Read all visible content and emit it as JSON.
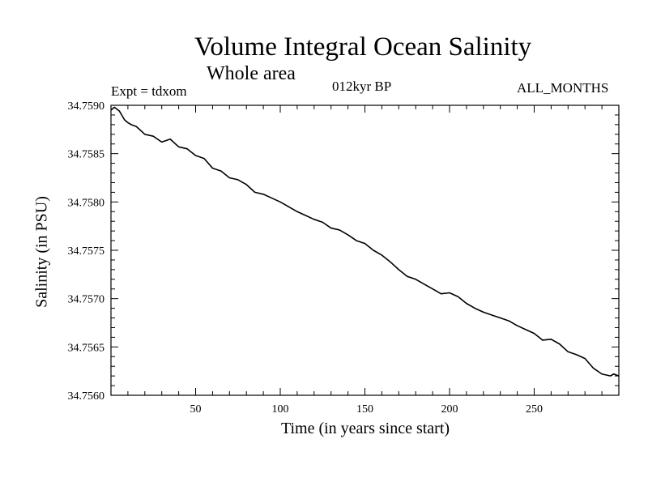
{
  "chart_data": {
    "type": "line",
    "title": "Volume Integral Ocean Salinity",
    "subtitle": "Whole area",
    "annotations": {
      "experiment": "Expt = tdxom",
      "period": "012kyr BP",
      "months": "ALL_MONTHS"
    },
    "xlabel": "Time (in years since start)",
    "ylabel": "Salinity (in PSU)",
    "xlim": [
      0,
      300
    ],
    "ylim": [
      34.756,
      34.759
    ],
    "xticks": [
      50,
      100,
      150,
      200,
      250
    ],
    "xtick_labels": [
      "50",
      "100",
      "150",
      "200",
      "250"
    ],
    "yticks": [
      34.756,
      34.7565,
      34.757,
      34.7575,
      34.758,
      34.7585,
      34.759
    ],
    "ytick_labels": [
      "34.7560",
      "34.7565",
      "34.7570",
      "34.7575",
      "34.7580",
      "34.7585",
      "34.7590"
    ],
    "grid": false,
    "series": [
      {
        "x": [
          0,
          2,
          5,
          8,
          10,
          12,
          15,
          20,
          25,
          30,
          35,
          40,
          45,
          50,
          55,
          60,
          65,
          70,
          75,
          80,
          85,
          90,
          95,
          100,
          105,
          110,
          115,
          120,
          125,
          130,
          135,
          140,
          145,
          150,
          155,
          160,
          165,
          170,
          175,
          180,
          185,
          190,
          195,
          200,
          205,
          210,
          215,
          220,
          225,
          230,
          235,
          240,
          245,
          250,
          255,
          260,
          265,
          270,
          275,
          280,
          285,
          290,
          295,
          297,
          300
        ],
        "y": [
          34.75895,
          34.75898,
          34.75894,
          34.75885,
          34.75882,
          34.7588,
          34.75878,
          34.7587,
          34.75868,
          34.75862,
          34.75865,
          34.75857,
          34.75855,
          34.75848,
          34.75845,
          34.75835,
          34.75832,
          34.75825,
          34.75823,
          34.75818,
          34.7581,
          34.75808,
          34.75804,
          34.758,
          34.75795,
          34.7579,
          34.75786,
          34.75782,
          34.75779,
          34.75773,
          34.75771,
          34.75766,
          34.7576,
          34.75757,
          34.7575,
          34.75745,
          34.75738,
          34.7573,
          34.75723,
          34.7572,
          34.75715,
          34.7571,
          34.75705,
          34.75706,
          34.75702,
          34.75695,
          34.7569,
          34.75686,
          34.75683,
          34.7568,
          34.75677,
          34.75672,
          34.75668,
          34.75664,
          34.75657,
          34.75658,
          34.75653,
          34.75645,
          34.75642,
          34.75638,
          34.75628,
          34.75622,
          34.7562,
          34.75622,
          34.7562
        ]
      }
    ]
  }
}
